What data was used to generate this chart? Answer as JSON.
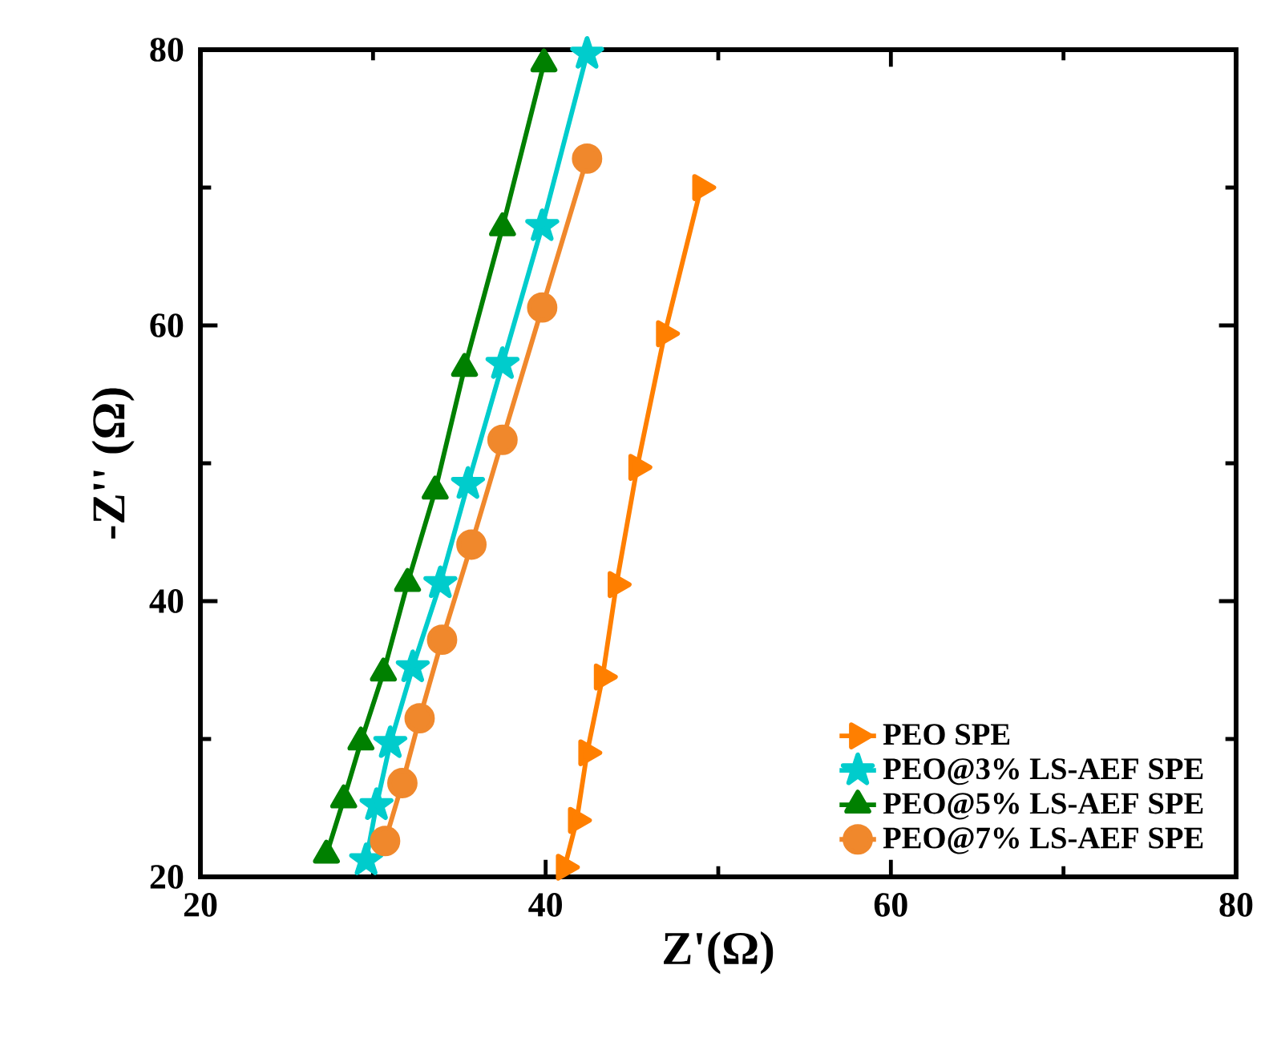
{
  "chart_data": {
    "type": "line",
    "xlabel": "Z'(Ω)",
    "ylabel": "-Z'' (Ω)",
    "xlim": [
      20,
      80
    ],
    "ylim": [
      20,
      80
    ],
    "xticks": [
      20,
      40,
      60,
      80
    ],
    "yticks": [
      20,
      40,
      60,
      80
    ],
    "grid": false,
    "legend": "bottom right",
    "line_style": "solid",
    "series": [
      {
        "name": "PEO SPE",
        "color": "#ff7f00",
        "marker": "triangle",
        "x": [
          41.1,
          41.8,
          42.4,
          43.3,
          44.1,
          45.3,
          46.9,
          49.0
        ],
        "values": [
          20.7,
          24.1,
          29.0,
          34.5,
          41.2,
          49.7,
          59.4,
          70.0
        ]
      },
      {
        "name": "PEO@3% LS-AEF SPE",
        "color": "#00cccc",
        "marker": "star",
        "x": [
          29.6,
          30.2,
          31.0,
          32.3,
          33.9,
          35.5,
          37.5,
          39.8,
          42.4
        ],
        "values": [
          21.2,
          25.2,
          29.7,
          35.2,
          41.3,
          48.5,
          57.2,
          67.2,
          79.7
        ]
      },
      {
        "name": "PEO@5% LS-AEF SPE",
        "color": "#008000",
        "marker": "triangle",
        "x": [
          27.3,
          28.3,
          29.3,
          30.6,
          32.0,
          33.6,
          35.3,
          37.5,
          39.9
        ],
        "values": [
          21.6,
          25.6,
          29.8,
          34.8,
          41.3,
          48.0,
          56.9,
          67.1,
          79.0
        ]
      },
      {
        "name": "PEO@7% LS-AEF SPE",
        "color": "#f0882c",
        "marker": "circle",
        "x": [
          30.7,
          31.7,
          32.7,
          34.0,
          35.7,
          37.5,
          39.8,
          42.4
        ],
        "values": [
          22.6,
          26.8,
          31.5,
          37.2,
          44.1,
          51.7,
          61.3,
          72.1
        ]
      }
    ]
  }
}
